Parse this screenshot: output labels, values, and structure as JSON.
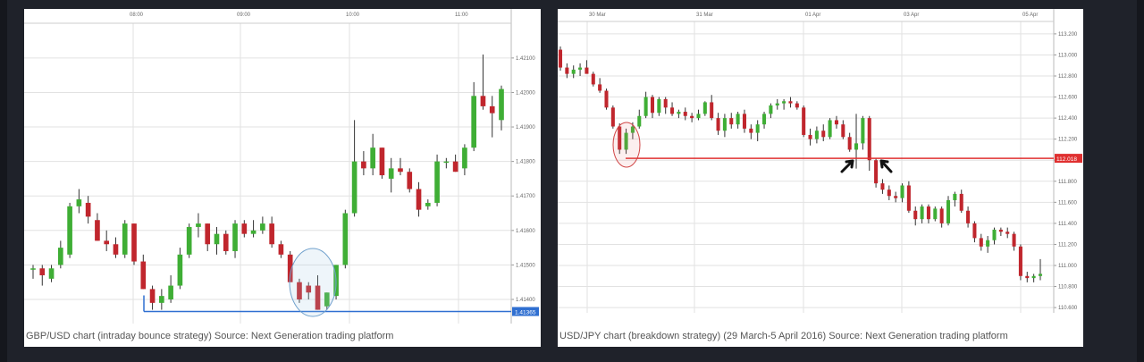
{
  "colors": {
    "background": "#1f222a",
    "panel": "#ffffff",
    "grid": "#e2e2e2",
    "bull": "#3fae35",
    "bear": "#c0262d",
    "wick": "#333333",
    "support_line": "#2f6fd1",
    "breakout_line": "#e03030",
    "highlight_circle_blue": "#6fa0cc",
    "highlight_circle_red": "#d04444",
    "price_tag_blue": "#2f6fd1",
    "price_tag_red": "#e03030",
    "arrow": "#111111"
  },
  "chart_data": [
    {
      "type": "candlestick",
      "caption": "GBP/USD chart (intraday bounce strategy) Source: Next Generation trading platform",
      "x_tick_labels": [
        "08:00",
        "09:00",
        "10:00",
        "11:00"
      ],
      "y_tick_labels": [
        "1.42100",
        "1.42000",
        "1.41900",
        "1.41800",
        "1.41700",
        "1.41600",
        "1.41500",
        "1.41400"
      ],
      "ylim": [
        1.4133,
        1.4218
      ],
      "support_level": 1.41365,
      "support_label": "1.41365",
      "candles": [
        [
          1.4149,
          1.415,
          1.4146,
          1.4149
        ],
        [
          1.4149,
          1.415,
          1.4144,
          1.4147
        ],
        [
          1.4146,
          1.415,
          1.4145,
          1.4149
        ],
        [
          1.415,
          1.4157,
          1.4149,
          1.4155
        ],
        [
          1.4153,
          1.4168,
          1.4152,
          1.4167
        ],
        [
          1.4167,
          1.4172,
          1.4165,
          1.4169
        ],
        [
          1.4168,
          1.417,
          1.4162,
          1.4164
        ],
        [
          1.4163,
          1.4165,
          1.4157,
          1.4157
        ],
        [
          1.4157,
          1.416,
          1.4154,
          1.4156
        ],
        [
          1.4156,
          1.4158,
          1.4152,
          1.4153
        ],
        [
          1.4153,
          1.4163,
          1.4152,
          1.4162
        ],
        [
          1.4162,
          1.4162,
          1.415,
          1.4151
        ],
        [
          1.4151,
          1.4153,
          1.4143,
          1.4143
        ],
        [
          1.4143,
          1.4144,
          1.4137,
          1.4139
        ],
        [
          1.4139,
          1.4143,
          1.4137,
          1.4141
        ],
        [
          1.414,
          1.4147,
          1.4139,
          1.4144
        ],
        [
          1.4144,
          1.4155,
          1.4143,
          1.4153
        ],
        [
          1.4153,
          1.4162,
          1.4152,
          1.4161
        ],
        [
          1.4161,
          1.4165,
          1.4158,
          1.4162
        ],
        [
          1.4162,
          1.4162,
          1.4154,
          1.4156
        ],
        [
          1.4156,
          1.4161,
          1.4153,
          1.4159
        ],
        [
          1.4159,
          1.416,
          1.4153,
          1.4154
        ],
        [
          1.4154,
          1.4163,
          1.4152,
          1.4162
        ],
        [
          1.4162,
          1.4163,
          1.4158,
          1.4159
        ],
        [
          1.4159,
          1.4163,
          1.4158,
          1.416
        ],
        [
          1.416,
          1.4164,
          1.4159,
          1.4162
        ],
        [
          1.4162,
          1.4164,
          1.4155,
          1.4156
        ],
        [
          1.4156,
          1.4157,
          1.4152,
          1.4153
        ],
        [
          1.4153,
          1.4154,
          1.4145,
          1.4145
        ],
        [
          1.4145,
          1.4146,
          1.4139,
          1.414
        ],
        [
          1.4144,
          1.4145,
          1.414,
          1.4142
        ],
        [
          1.4144,
          1.4147,
          1.4137,
          1.4137
        ],
        [
          1.4138,
          1.4142,
          1.4137,
          1.4142
        ],
        [
          1.4141,
          1.415,
          1.414,
          1.415
        ],
        [
          1.415,
          1.4166,
          1.4149,
          1.4165
        ],
        [
          1.4165,
          1.4192,
          1.4164,
          1.418
        ],
        [
          1.418,
          1.4183,
          1.4176,
          1.4178
        ],
        [
          1.4178,
          1.4188,
          1.4176,
          1.4184
        ],
        [
          1.4184,
          1.4184,
          1.4175,
          1.4176
        ],
        [
          1.4175,
          1.4181,
          1.4171,
          1.4178
        ],
        [
          1.4178,
          1.4181,
          1.4176,
          1.4177
        ],
        [
          1.4177,
          1.4178,
          1.4171,
          1.4172
        ],
        [
          1.4172,
          1.4174,
          1.4164,
          1.4166
        ],
        [
          1.4167,
          1.4169,
          1.4166,
          1.4168
        ],
        [
          1.4168,
          1.4182,
          1.4167,
          1.418
        ],
        [
          1.418,
          1.4181,
          1.4178,
          1.418
        ],
        [
          1.418,
          1.4182,
          1.4177,
          1.4177
        ],
        [
          1.4178,
          1.4185,
          1.4176,
          1.4184
        ],
        [
          1.4184,
          1.4203,
          1.4183,
          1.4199
        ],
        [
          1.4199,
          1.4211,
          1.4195,
          1.4196
        ],
        [
          1.4196,
          1.4199,
          1.4187,
          1.4194
        ],
        [
          1.4192,
          1.4202,
          1.4189,
          1.4201
        ]
      ]
    },
    {
      "type": "candlestick",
      "caption": "USD/JPY chart (breakdown strategy) (29 March-5 April 2016) Source: Next Generation trading platform",
      "x_tick_labels": [
        "30 Mar",
        "31 Mar",
        "01 Apr",
        "03 Apr",
        "05 Apr"
      ],
      "y_tick_labels": [
        "113.200",
        "113.000",
        "112.800",
        "112.600",
        "112.400",
        "112.200",
        "112.000",
        "111.800",
        "111.600",
        "111.400",
        "111.200",
        "111.000",
        "110.800",
        "110.600"
      ],
      "ylim": [
        110.55,
        113.25
      ],
      "breakout_level": 112.018,
      "breakout_label": "112.018",
      "candles": [
        [
          113.05,
          113.08,
          112.85,
          112.88
        ],
        [
          112.88,
          112.92,
          112.78,
          112.82
        ],
        [
          112.82,
          112.9,
          112.78,
          112.86
        ],
        [
          112.86,
          112.92,
          112.8,
          112.88
        ],
        [
          112.88,
          112.95,
          112.84,
          112.82
        ],
        [
          112.82,
          112.84,
          112.7,
          112.72
        ],
        [
          112.72,
          112.78,
          112.64,
          112.66
        ],
        [
          112.66,
          112.68,
          112.48,
          112.5
        ],
        [
          112.5,
          112.52,
          112.3,
          112.32
        ],
        [
          112.32,
          112.35,
          112.06,
          112.1
        ],
        [
          112.1,
          112.3,
          112.06,
          112.26
        ],
        [
          112.26,
          112.36,
          112.2,
          112.32
        ],
        [
          112.32,
          112.48,
          112.3,
          112.42
        ],
        [
          112.42,
          112.65,
          112.4,
          112.6
        ],
        [
          112.6,
          112.62,
          112.4,
          112.45
        ],
        [
          112.45,
          112.6,
          112.42,
          112.58
        ],
        [
          112.58,
          112.6,
          112.44,
          112.5
        ],
        [
          112.5,
          112.55,
          112.42,
          112.44
        ],
        [
          112.44,
          112.48,
          112.4,
          112.46
        ],
        [
          112.46,
          112.5,
          112.38,
          112.42
        ],
        [
          112.42,
          112.45,
          112.36,
          112.4
        ],
        [
          112.4,
          112.48,
          112.38,
          112.44
        ],
        [
          112.44,
          112.56,
          112.42,
          112.55
        ],
        [
          112.55,
          112.62,
          112.38,
          112.4
        ],
        [
          112.4,
          112.45,
          112.24,
          112.28
        ],
        [
          112.28,
          112.44,
          112.22,
          112.4
        ],
        [
          112.4,
          112.45,
          112.3,
          112.34
        ],
        [
          112.34,
          112.46,
          112.3,
          112.44
        ],
        [
          112.44,
          112.48,
          112.26,
          112.3
        ],
        [
          112.3,
          112.34,
          112.2,
          112.26
        ],
        [
          112.26,
          112.38,
          112.18,
          112.34
        ],
        [
          112.34,
          112.46,
          112.3,
          112.44
        ],
        [
          112.44,
          112.54,
          112.4,
          112.52
        ],
        [
          112.52,
          112.58,
          112.48,
          112.54
        ],
        [
          112.54,
          112.58,
          112.48,
          112.56
        ],
        [
          112.56,
          112.6,
          112.5,
          112.54
        ],
        [
          112.54,
          112.56,
          112.48,
          112.5
        ],
        [
          112.5,
          112.52,
          112.22,
          112.24
        ],
        [
          112.24,
          112.3,
          112.14,
          112.2
        ],
        [
          112.2,
          112.32,
          112.16,
          112.28
        ],
        [
          112.28,
          112.34,
          112.18,
          112.22
        ],
        [
          112.22,
          112.4,
          112.2,
          112.38
        ],
        [
          112.38,
          112.42,
          112.3,
          112.34
        ],
        [
          112.34,
          112.38,
          112.2,
          112.22
        ],
        [
          112.22,
          112.26,
          112.08,
          112.1
        ],
        [
          112.1,
          112.44,
          111.92,
          112.16
        ],
        [
          112.16,
          112.42,
          112.1,
          112.4
        ],
        [
          112.4,
          112.42,
          111.9,
          112.0
        ],
        [
          112.0,
          112.02,
          111.74,
          111.78
        ],
        [
          111.78,
          111.82,
          111.68,
          111.72
        ],
        [
          111.72,
          111.76,
          111.62,
          111.66
        ],
        [
          111.66,
          111.7,
          111.6,
          111.64
        ],
        [
          111.64,
          111.78,
          111.6,
          111.76
        ],
        [
          111.76,
          111.8,
          111.5,
          111.52
        ],
        [
          111.52,
          111.56,
          111.38,
          111.44
        ],
        [
          111.44,
          111.58,
          111.4,
          111.56
        ],
        [
          111.56,
          111.58,
          111.4,
          111.44
        ],
        [
          111.44,
          111.56,
          111.42,
          111.54
        ],
        [
          111.54,
          111.56,
          111.36,
          111.4
        ],
        [
          111.4,
          111.66,
          111.38,
          111.62
        ],
        [
          111.62,
          111.7,
          111.56,
          111.68
        ],
        [
          111.68,
          111.72,
          111.5,
          111.52
        ],
        [
          111.52,
          111.56,
          111.36,
          111.4
        ],
        [
          111.4,
          111.42,
          111.22,
          111.26
        ],
        [
          111.26,
          111.3,
          111.14,
          111.18
        ],
        [
          111.18,
          111.28,
          111.12,
          111.24
        ],
        [
          111.24,
          111.36,
          111.2,
          111.34
        ],
        [
          111.34,
          111.36,
          111.28,
          111.32
        ],
        [
          111.32,
          111.36,
          111.26,
          111.3
        ],
        [
          111.3,
          111.32,
          111.14,
          111.18
        ],
        [
          111.18,
          111.2,
          110.86,
          110.9
        ],
        [
          110.9,
          110.94,
          110.84,
          110.88
        ],
        [
          110.88,
          110.92,
          110.84,
          110.9
        ],
        [
          110.9,
          111.06,
          110.86,
          110.92
        ]
      ]
    }
  ]
}
